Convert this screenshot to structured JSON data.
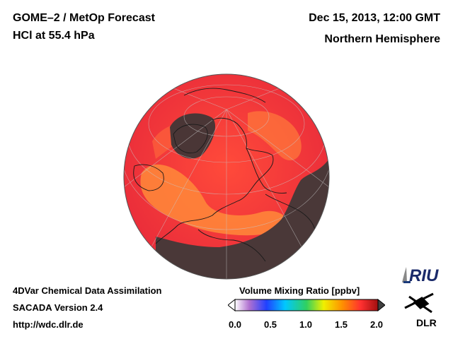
{
  "header": {
    "title_line1": "GOME–2 / MetOp Forecast",
    "title_line2": "HCl at 55.4 hPa",
    "date_line": "Dec 15, 2013, 12:00 GMT",
    "region_line": "Northern Hemisphere"
  },
  "footer": {
    "line1": "4DVar Chemical Data Assimilation",
    "line2": "SACADA Version 2.4",
    "line3": "http://wdc.dlr.de"
  },
  "colorbar": {
    "title": "Volume Mixing Ratio [ppbv]",
    "ticks": [
      "0.0",
      "0.5",
      "1.0",
      "1.5",
      "2.0"
    ],
    "min": 0.0,
    "max": 2.0,
    "colors": [
      "#ffffff",
      "#b070d0",
      "#2040ff",
      "#00c8ff",
      "#30d060",
      "#f0f000",
      "#ff9000",
      "#ff3030",
      "#a01010",
      "#404040"
    ]
  },
  "logos": {
    "riu": "RIU",
    "dlr": "DLR"
  },
  "map": {
    "projection": "orthographic",
    "hemisphere": "north",
    "field_colors": {
      "background_high": "#f23a3a",
      "peak": "#ffa040",
      "low": "#4a3a3a"
    }
  }
}
